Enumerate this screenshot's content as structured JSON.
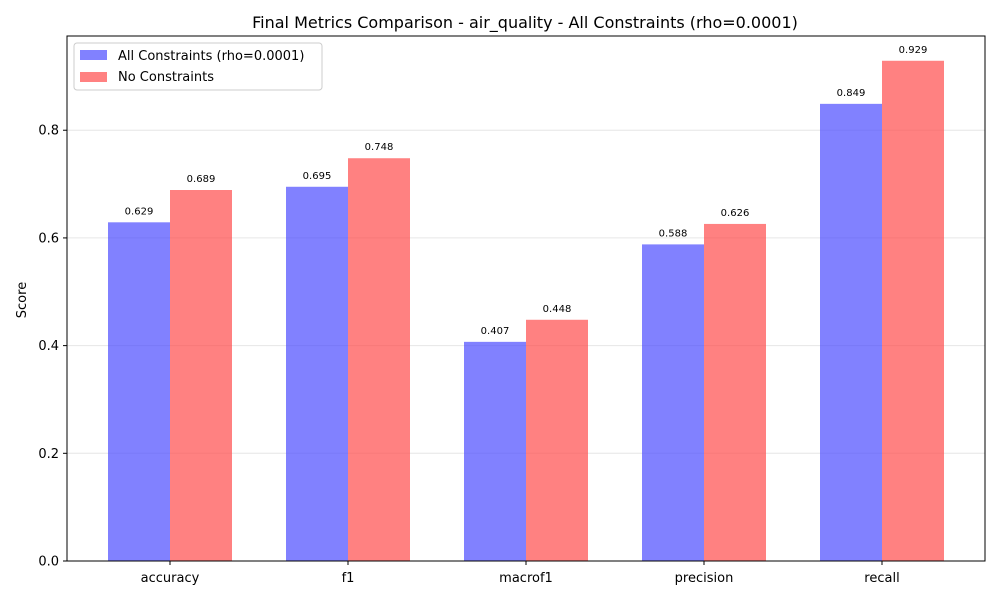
{
  "chart_data": {
    "type": "bar",
    "title": "Final Metrics Comparison - air_quality - All Constraints (rho=0.0001)",
    "xlabel": "",
    "ylabel": "Score",
    "categories": [
      "accuracy",
      "f1",
      "macrof1",
      "precision",
      "recall"
    ],
    "series": [
      {
        "name": "All Constraints (rho=0.0001)",
        "values": [
          0.629,
          0.695,
          0.407,
          0.588,
          0.849
        ],
        "labels": [
          "0.629",
          "0.695",
          "0.407",
          "0.588",
          "0.849"
        ],
        "color": "#4b4bff"
      },
      {
        "name": "No Constraints",
        "values": [
          0.689,
          0.748,
          0.448,
          0.626,
          0.929
        ],
        "labels": [
          "0.689",
          "0.748",
          "0.448",
          "0.626",
          "0.929"
        ],
        "color": "#ff4b4b"
      }
    ],
    "ylim": [
      0,
      0.975
    ],
    "yticks": [
      0.0,
      0.2,
      0.4,
      0.6,
      0.8
    ],
    "ytick_labels": [
      "0.0",
      "0.2",
      "0.4",
      "0.6",
      "0.8"
    ],
    "grid": "y",
    "legend_position": "upper-left"
  }
}
